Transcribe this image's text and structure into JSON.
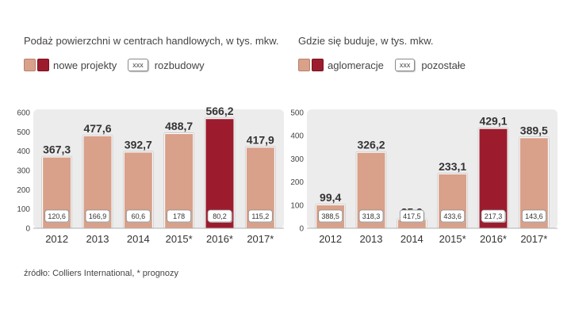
{
  "source_note": "źródło: Colliers International, * prognozy",
  "box_marker": "xxx",
  "colors": {
    "main": "#d9a08a",
    "accent": "#9c1c2e",
    "panel": "#ececec"
  },
  "chart_data": [
    {
      "type": "bar",
      "title": "Podaż powierzchni w centrach handlowych, w  tys. mkw.",
      "legend": [
        "nowe projekty",
        "rozbudowy"
      ],
      "categories": [
        "2012",
        "2013",
        "2014",
        "2015*",
        "2016*",
        "2017*"
      ],
      "series": [
        {
          "name": "nowe projekty",
          "values": [
            367.3,
            477.6,
            392.7,
            488.7,
            566.2,
            417.9
          ],
          "labels": [
            "367,3",
            "477,6",
            "392,7",
            "488,7",
            "566,2",
            "417,9"
          ]
        },
        {
          "name": "rozbudowy",
          "values": [
            120.6,
            166.9,
            60.6,
            178,
            80.2,
            115.2
          ],
          "labels": [
            "120,6",
            "166,9",
            "60,6",
            "178",
            "80,2",
            "115,2"
          ]
        }
      ],
      "highlight_index": 4,
      "ylim": [
        0,
        600
      ],
      "yticks": [
        0,
        100,
        200,
        300,
        400,
        500,
        600
      ]
    },
    {
      "type": "bar",
      "title": "Gdzie się buduje, w tys. mkw.",
      "legend": [
        "aglomeracje",
        "pozostałe"
      ],
      "categories": [
        "2012",
        "2013",
        "2014",
        "2015*",
        "2016*",
        "2017*"
      ],
      "series": [
        {
          "name": "aglomeracje",
          "values": [
            99.4,
            326.2,
            35.9,
            233.1,
            429.1,
            389.5
          ],
          "labels": [
            "99,4",
            "326,2",
            "35,9",
            "233,1",
            "429,1",
            "389,5"
          ]
        },
        {
          "name": "pozostałe",
          "values": [
            388.5,
            318.3,
            417.5,
            433.6,
            217.3,
            143.6
          ],
          "labels": [
            "388,5",
            "318,3",
            "417,5",
            "433,6",
            "217,3",
            "143,6"
          ]
        }
      ],
      "highlight_index": 4,
      "ylim": [
        0,
        500
      ],
      "yticks": [
        0,
        100,
        200,
        300,
        400,
        500
      ]
    }
  ]
}
